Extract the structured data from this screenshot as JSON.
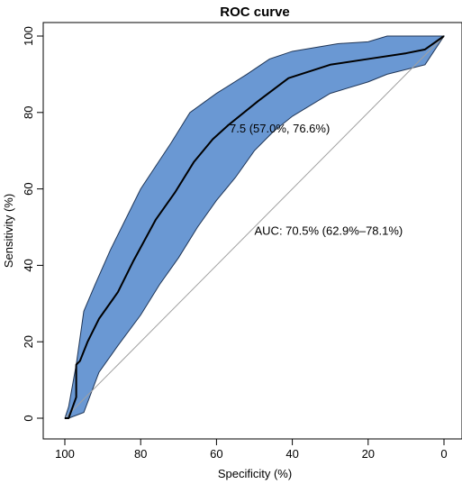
{
  "chart_data": {
    "type": "line",
    "title": "ROC curve",
    "xlabel": "Specificity (%)",
    "ylabel": "Sensitivity (%)",
    "xlim": [
      100,
      0
    ],
    "ylim": [
      0,
      100
    ],
    "x_ticks": [
      100,
      80,
      60,
      40,
      20,
      0
    ],
    "y_ticks": [
      0,
      20,
      40,
      60,
      80,
      100
    ],
    "x_tick_labels": [
      "100",
      "80",
      "60",
      "40",
      "20",
      "0"
    ],
    "y_tick_labels": [
      "0",
      "20",
      "40",
      "60",
      "80",
      "100"
    ],
    "x_reversed": true,
    "grid": false,
    "colors": {
      "band_fill": "#6a98d3",
      "band_stroke": "#1f3556",
      "curve": "#000000",
      "diagonal": "#a0a0a0",
      "threshold_label": "#1f3f78"
    },
    "roc_curve": {
      "specificity": [
        100,
        99,
        97,
        97,
        96,
        94,
        91,
        86,
        82,
        76,
        71,
        66,
        61,
        57,
        49,
        41,
        30,
        20,
        10,
        5,
        0
      ],
      "sensitivity": [
        0,
        0,
        5.5,
        14,
        15,
        20,
        26,
        33,
        41,
        52,
        59,
        67,
        73,
        76.6,
        83,
        89,
        92.5,
        94,
        95.5,
        96.5,
        100
      ]
    },
    "confidence_band": {
      "upper": {
        "specificity": [
          100,
          99,
          97,
          95,
          92,
          88,
          84,
          80,
          76,
          72,
          67,
          60,
          52,
          46,
          40,
          34,
          28,
          20,
          15,
          10,
          5,
          0
        ],
        "sensitivity": [
          0,
          3,
          14,
          28,
          35,
          44,
          52,
          60,
          66,
          72,
          80,
          85,
          90,
          94,
          96,
          97,
          98,
          98.5,
          100,
          100,
          100,
          100
        ]
      },
      "lower": {
        "specificity": [
          100,
          99,
          95,
          91,
          86,
          80,
          75,
          70,
          65,
          60,
          55,
          50,
          45,
          40,
          35,
          30,
          20,
          15,
          5,
          0
        ],
        "sensitivity": [
          0,
          0,
          1.5,
          12,
          19,
          27,
          35,
          42,
          50,
          57,
          63,
          70,
          75,
          79,
          82,
          85,
          88,
          90,
          92.5,
          100
        ]
      }
    },
    "diagonal": {
      "from": [
        100,
        0
      ],
      "to": [
        0,
        100
      ]
    },
    "threshold_point": {
      "specificity": 57.0,
      "sensitivity": 76.6
    },
    "annotations": {
      "threshold": "7.5 (57.0%, 76.6%)",
      "auc": "AUC: 70.5% (62.9%–78.1%)"
    }
  }
}
